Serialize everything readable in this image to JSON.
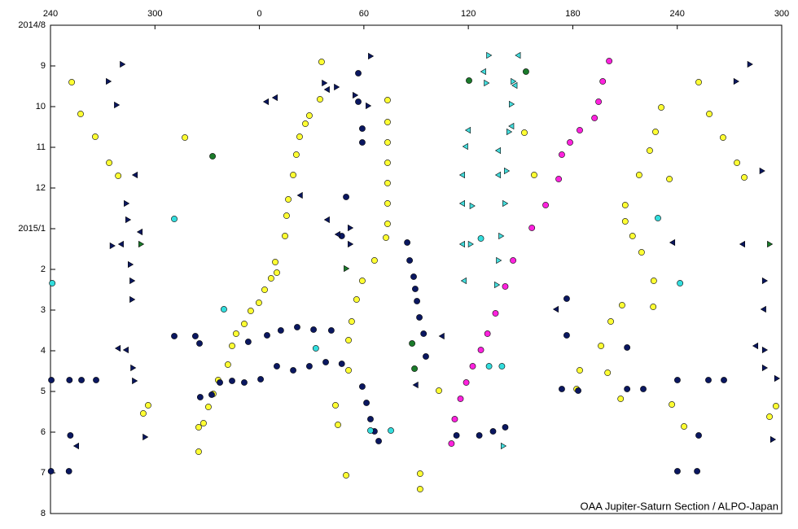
{
  "chart_data": {
    "type": "scatter",
    "credit": "OAA Jupiter-Saturn Section / ALPO-Japan",
    "x_axis_position": "top",
    "y_reversed": true,
    "xlim": [
      -120,
      300
    ],
    "xticks": [
      {
        "value": -120,
        "label": "240"
      },
      {
        "value": -60,
        "label": "300"
      },
      0,
      60,
      120,
      180,
      240,
      300
    ],
    "ylim": [
      0,
      12
    ],
    "yticks": [
      {
        "value": 0,
        "label": "2014/8"
      },
      {
        "value": 1,
        "label": "9"
      },
      {
        "value": 2,
        "label": "10"
      },
      {
        "value": 3,
        "label": "11"
      },
      {
        "value": 4,
        "label": "12"
      },
      {
        "value": 5,
        "label": "2015/1"
      },
      {
        "value": 6,
        "label": "2"
      },
      {
        "value": 7,
        "label": "3"
      },
      {
        "value": 8,
        "label": "4"
      },
      {
        "value": 9,
        "label": "5"
      },
      {
        "value": 10,
        "label": "6"
      },
      {
        "value": 11,
        "label": "7"
      },
      {
        "value": 12,
        "label": "8"
      }
    ],
    "series": [
      {
        "color": "#ffff33",
        "marker": "circle",
        "x": [
          -107.8,
          -102.7,
          -94.3,
          -86.3,
          -81.1,
          -42.8,
          -66.7,
          -63.9,
          -34.9,
          -34.9,
          -32.1,
          -29.3,
          -26.5,
          -23.7,
          -18.1,
          -15.7,
          -13.4,
          -8.7,
          -5.0,
          -0.3,
          3.0,
          6.7,
          9.1,
          10.0,
          14.7,
          15.6,
          16.6,
          19.4,
          21.2,
          23.1,
          26.4,
          28.7,
          34.8,
          35.7,
          43.7,
          45.1,
          51.2,
          51.2,
          53.0,
          55.8,
          59.1,
          49.8,
          73.6,
          73.6,
          73.6,
          73.6,
          73.6,
          73.6,
          73.6,
          72.7,
          66.1,
          92.3,
          92.3,
          103.1,
          152.2,
          157.8,
          230.8,
          227.5,
          224.2,
          218.1,
          210.1,
          210.1,
          214.3,
          219.5,
          226.5,
          208.3,
          201.8,
          196.2,
          184.0,
          182.2,
          200.0,
          207.5,
          226.2,
          235.5,
          236.9,
          252.3,
          258.4,
          266.3,
          274.3,
          278.5,
          293.0,
          296.7,
          243.9
        ],
        "values": [
          1.4,
          2.18,
          2.74,
          3.38,
          3.7,
          2.76,
          9.54,
          9.34,
          9.88,
          10.48,
          9.78,
          9.38,
          9.06,
          8.72,
          8.34,
          7.88,
          7.58,
          7.34,
          7.02,
          6.82,
          6.5,
          6.22,
          5.82,
          6.08,
          5.18,
          4.68,
          4.28,
          3.68,
          3.18,
          2.74,
          2.42,
          2.22,
          1.82,
          0.9,
          9.34,
          9.82,
          8.48,
          7.74,
          7.28,
          6.74,
          6.28,
          11.06,
          1.84,
          2.38,
          2.88,
          3.38,
          3.88,
          4.38,
          4.88,
          5.22,
          5.78,
          11.02,
          11.4,
          8.98,
          2.64,
          3.68,
          2.02,
          2.62,
          3.08,
          3.68,
          4.42,
          4.82,
          5.18,
          5.58,
          6.28,
          6.88,
          7.28,
          7.88,
          8.48,
          8.94,
          8.54,
          9.18,
          6.92,
          3.78,
          9.32,
          1.4,
          2.18,
          2.76,
          3.38,
          3.74,
          9.62,
          9.36,
          9.86
        ]
      },
      {
        "color": "#0a1760",
        "marker": "circle",
        "x": [
          -119.5,
          -109.1,
          -102.2,
          -93.8,
          -108.6,
          -119.7,
          -109.4,
          -48.9,
          -36.8,
          -34.4,
          -34.0,
          -27.4,
          -22.7,
          -15.7,
          -8.7,
          0.7,
          -6.4,
          4.4,
          12.3,
          21.7,
          31.1,
          41.3,
          10.0,
          19.4,
          28.7,
          38.1,
          47.3,
          59.1,
          61.5,
          63.8,
          66.1,
          68.5,
          56.8,
          56.8,
          59.1,
          59.1,
          49.8,
          47.3,
          84.9,
          86.3,
          88.6,
          89.5,
          90.5,
          91.9,
          94.3,
          95.6,
          113.2,
          126.3,
          134.2,
          141.2,
          176.5,
          176.5,
          211.2,
          173.7,
          183.1,
          211.2,
          220.5,
          240.1,
          257.9,
          266.8,
          240.1,
          251.4,
          252.3
        ],
        "values": [
          8.72,
          8.72,
          8.72,
          8.72,
          10.08,
          10.96,
          10.96,
          7.64,
          7.64,
          7.82,
          9.14,
          9.08,
          8.78,
          8.74,
          8.78,
          8.7,
          7.78,
          7.62,
          7.5,
          7.42,
          7.48,
          7.5,
          8.38,
          8.48,
          8.38,
          8.28,
          8.32,
          8.88,
          9.28,
          9.68,
          9.98,
          10.22,
          1.18,
          1.88,
          2.54,
          2.88,
          4.22,
          5.18,
          5.34,
          5.78,
          6.18,
          6.48,
          6.78,
          7.18,
          7.58,
          8.14,
          10.08,
          10.08,
          9.98,
          9.88,
          6.72,
          7.62,
          7.92,
          8.94,
          8.98,
          8.94,
          8.94,
          8.72,
          8.72,
          8.72,
          10.96,
          10.96,
          10.08
        ]
      },
      {
        "color": "#ff22dd",
        "marker": "circle",
        "x": [
          200.9,
          197.2,
          194.8,
          192.5,
          184.0,
          178.4,
          173.7,
          171.9,
          164.4,
          156.5,
          145.7,
          141.2,
          135.6,
          131.0,
          127.2,
          122.5,
          118.8,
          115.5,
          112.2,
          110.3
        ],
        "values": [
          0.88,
          1.38,
          1.88,
          2.28,
          2.58,
          2.88,
          3.18,
          3.78,
          4.42,
          4.98,
          5.78,
          6.42,
          7.08,
          7.58,
          7.98,
          8.38,
          8.78,
          9.18,
          9.68,
          10.28
        ]
      },
      {
        "color": "#33dddd",
        "marker": "circle",
        "x": [
          -119.0,
          -48.9,
          -20.4,
          32.4,
          63.8,
          75.5,
          127.2,
          131.9,
          139.3,
          228.9,
          241.6
        ],
        "values": [
          6.34,
          4.76,
          6.98,
          7.94,
          9.96,
          9.96,
          5.24,
          8.38,
          8.38,
          4.74,
          6.34
        ]
      },
      {
        "color": "#1a7a2a",
        "marker": "circle",
        "x": [
          -26.9,
          120.4,
          153.1,
          87.7,
          89.1
        ],
        "values": [
          3.22,
          1.36,
          1.14,
          7.82,
          8.44
        ]
      },
      {
        "color": "#0a1760",
        "marker": "triangle-right",
        "x": [
          -78.8,
          -86.8,
          -82.1,
          -76.5,
          -75.6,
          -84.6,
          -74.2,
          -73.2,
          -73.2,
          -72.7,
          -71.8,
          -65.7,
          44.2,
          37.2,
          54.9,
          62.4,
          63.8,
          52.1,
          52.1,
          281.6,
          273.7,
          288.6,
          290.1,
          290.1,
          290.1,
          294.8,
          297.1
        ],
        "values": [
          0.96,
          1.38,
          1.96,
          4.38,
          4.78,
          5.42,
          5.88,
          6.28,
          6.74,
          8.42,
          8.74,
          10.12,
          1.52,
          1.42,
          1.72,
          1.98,
          0.76,
          4.98,
          5.38,
          0.96,
          1.38,
          3.58,
          6.28,
          7.98,
          8.42,
          10.18,
          8.68
        ]
      },
      {
        "color": "#0a1760",
        "marker": "triangle-left",
        "x": [
          4.0,
          9.1,
          23.5,
          39.0,
          45.1,
          39.0,
          -71.3,
          -68.5,
          -79.3,
          -76.5,
          -81.1,
          -105.0,
          89.9,
          104.9,
          170.5,
          237.4,
          277.6,
          285.1,
          289.7
        ],
        "values": [
          1.88,
          1.78,
          4.18,
          4.78,
          5.14,
          1.58,
          3.68,
          5.08,
          5.38,
          7.98,
          7.94,
          10.34,
          8.84,
          7.64,
          6.98,
          5.34,
          5.38,
          7.88,
          6.98
        ]
      },
      {
        "color": "#44dddd",
        "marker": "triangle-right",
        "x": [
          131.7,
          130.3,
          145.7,
          144.7,
          143.3,
          141.9,
          141.0,
          138.7,
          137.3,
          136.3,
          140.0,
          122.1,
          121.2
        ],
        "values": [
          0.74,
          1.42,
          1.38,
          1.94,
          2.62,
          3.58,
          4.38,
          5.18,
          5.78,
          6.38,
          10.34,
          4.44,
          5.38
        ]
      },
      {
        "color": "#44dddd",
        "marker": "triangle-left",
        "x": [
          148.7,
          146.8,
          144.9,
          137.3,
          137.3,
          120.0,
          118.5,
          116.7,
          116.7,
          116.7,
          117.6,
          128.8
        ],
        "values": [
          0.74,
          1.48,
          2.48,
          3.08,
          3.68,
          2.58,
          2.98,
          3.68,
          4.38,
          5.38,
          6.28,
          1.14
        ]
      },
      {
        "color": "#1a7a2a",
        "marker": "triangle-right",
        "x": [
          -68.1,
          49.8,
          293.0
        ],
        "values": [
          5.38,
          5.98,
          5.38
        ]
      }
    ]
  }
}
